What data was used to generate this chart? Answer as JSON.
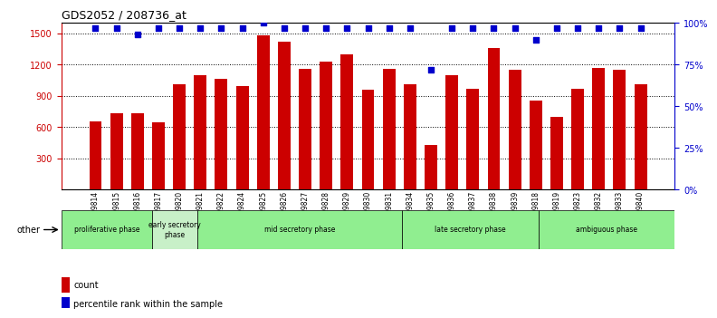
{
  "title": "GDS2052 / 208736_at",
  "samples": [
    "GSM109814",
    "GSM109815",
    "GSM109816",
    "GSM109817",
    "GSM109820",
    "GSM109821",
    "GSM109822",
    "GSM109824",
    "GSM109825",
    "GSM109826",
    "GSM109827",
    "GSM109828",
    "GSM109829",
    "GSM109830",
    "GSM109831",
    "GSM109834",
    "GSM109835",
    "GSM109836",
    "GSM109837",
    "GSM109838",
    "GSM109839",
    "GSM109818",
    "GSM109819",
    "GSM109823",
    "GSM109832",
    "GSM109833",
    "GSM109840"
  ],
  "counts": [
    650,
    730,
    730,
    645,
    1010,
    1100,
    1060,
    990,
    1480,
    1420,
    1160,
    1230,
    1300,
    960,
    1160,
    1010,
    430,
    1100,
    970,
    1360,
    1150,
    855,
    700,
    970,
    1170,
    1150,
    1010
  ],
  "percentile_ranks": [
    97,
    97,
    93,
    97,
    97,
    97,
    97,
    97,
    100,
    97,
    97,
    97,
    97,
    97,
    97,
    97,
    72,
    97,
    97,
    97,
    97,
    90,
    97,
    97,
    97,
    97,
    97
  ],
  "phases": [
    {
      "label": "proliferative phase",
      "start": 0,
      "end": 4,
      "color": "#90EE90"
    },
    {
      "label": "early secretory\nphase",
      "start": 4,
      "end": 6,
      "color": "#c8f0c8"
    },
    {
      "label": "mid secretory phase",
      "start": 6,
      "end": 15,
      "color": "#90EE90"
    },
    {
      "label": "late secretory phase",
      "start": 15,
      "end": 21,
      "color": "#90EE90"
    },
    {
      "label": "ambiguous phase",
      "start": 21,
      "end": 27,
      "color": "#90EE90"
    }
  ],
  "bar_color": "#cc0000",
  "dot_color": "#0000cc",
  "ylim_left": [
    0,
    1600
  ],
  "ylim_right": [
    0,
    100
  ],
  "yticks_left": [
    300,
    600,
    900,
    1200,
    1500
  ],
  "yticks_right": [
    0,
    25,
    50,
    75,
    100
  ],
  "background_color": "#d0d0d0",
  "plot_bg_color": "#ffffff",
  "other_label": "other",
  "legend_count": "count",
  "legend_percentile": "percentile rank within the sample"
}
